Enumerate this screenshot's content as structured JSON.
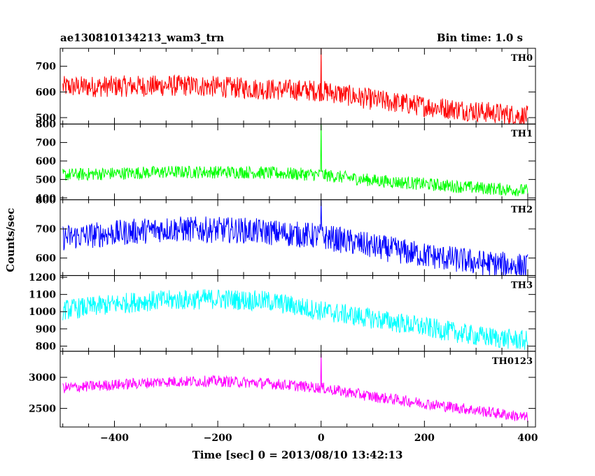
{
  "header": {
    "title": "ae130810134213_wam3_trn",
    "bin_time": "Bin time: 1.0 s"
  },
  "chart_data": {
    "type": "line",
    "xlabel": "Time [sec] 0 = 2013/08/10 13:42:13",
    "ylabel": "Counts/sec",
    "xlim": [
      -505,
      415
    ],
    "xticks": [
      -400,
      -200,
      0,
      200,
      400
    ],
    "bin_time_s": 1.0,
    "panels": [
      {
        "name": "TH0",
        "color": "#ff0000",
        "ylim": [
          475,
          770
        ],
        "yticks": [
          500,
          600,
          700
        ],
        "x_start": -500,
        "x_end": 400,
        "baseline_knots": [
          [
            -500,
            620
          ],
          [
            -250,
            625
          ],
          [
            -100,
            610
          ],
          [
            0,
            605
          ],
          [
            100,
            570
          ],
          [
            200,
            545
          ],
          [
            300,
            525
          ],
          [
            400,
            505
          ]
        ],
        "noise_amplitude": 42,
        "spike": {
          "x": 0,
          "peak": 770
        }
      },
      {
        "name": "TH1",
        "color": "#00ff00",
        "ylim": [
          390,
          800
        ],
        "yticks": [
          400,
          500,
          600,
          700,
          800
        ],
        "x_start": -500,
        "x_end": 400,
        "baseline_knots": [
          [
            -500,
            525
          ],
          [
            -300,
            540
          ],
          [
            -150,
            540
          ],
          [
            0,
            525
          ],
          [
            100,
            495
          ],
          [
            200,
            475
          ],
          [
            300,
            455
          ],
          [
            400,
            440
          ]
        ],
        "noise_amplitude": 35,
        "spike": {
          "x": 0,
          "peak": 805
        }
      },
      {
        "name": "TH2",
        "color": "#0000ff",
        "ylim": [
          540,
          800
        ],
        "yticks": [
          600,
          700,
          800
        ],
        "x_start": -500,
        "x_end": 400,
        "baseline_knots": [
          [
            -500,
            670
          ],
          [
            -300,
            700
          ],
          [
            -150,
            695
          ],
          [
            0,
            675
          ],
          [
            100,
            640
          ],
          [
            200,
            610
          ],
          [
            300,
            585
          ],
          [
            400,
            570
          ]
        ],
        "noise_amplitude": 45,
        "spike": {
          "x": 0,
          "peak": 800
        }
      },
      {
        "name": "TH3",
        "color": "#00ffff",
        "ylim": [
          770,
          1210
        ],
        "yticks": [
          800,
          900,
          1000,
          1100,
          1200
        ],
        "x_start": -500,
        "x_end": 400,
        "baseline_knots": [
          [
            -500,
            1010
          ],
          [
            -350,
            1060
          ],
          [
            -200,
            1075
          ],
          [
            -100,
            1060
          ],
          [
            0,
            1005
          ],
          [
            100,
            960
          ],
          [
            200,
            910
          ],
          [
            300,
            860
          ],
          [
            400,
            830
          ]
        ],
        "noise_amplitude": 60,
        "spike": null
      },
      {
        "name": "TH0123",
        "color": "#ff00ff",
        "ylim": [
          2200,
          3420
        ],
        "yticks": [
          2500,
          3000
        ],
        "x_start": -500,
        "x_end": 400,
        "baseline_knots": [
          [
            -500,
            2830
          ],
          [
            -300,
            2930
          ],
          [
            -200,
            2940
          ],
          [
            -100,
            2900
          ],
          [
            0,
            2830
          ],
          [
            100,
            2690
          ],
          [
            200,
            2580
          ],
          [
            300,
            2470
          ],
          [
            400,
            2350
          ]
        ],
        "noise_amplitude": 90,
        "spike": {
          "x": 0,
          "peak": 3380
        }
      }
    ]
  }
}
